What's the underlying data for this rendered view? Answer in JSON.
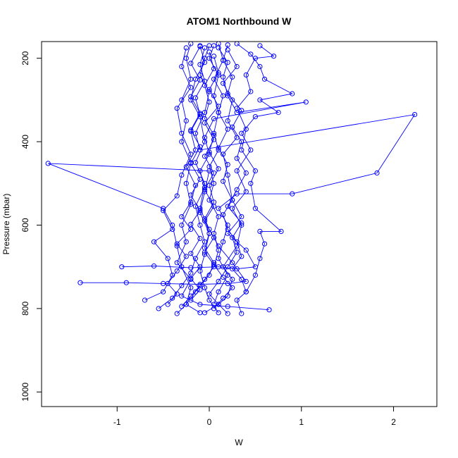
{
  "chart_data": {
    "type": "scatter",
    "title": "ATOM1 Northbound W",
    "xlabel": "W",
    "ylabel": "Pressure (mbar)",
    "xlim": [
      -1.82,
      2.47
    ],
    "ylim": [
      1035,
      160
    ],
    "y_reversed": true,
    "x_ticks": [
      -1,
      0,
      1,
      2
    ],
    "x_tick_labels": [
      "-1",
      "0",
      "1",
      "2"
    ],
    "y_ticks": [
      200,
      400,
      600,
      800,
      1000
    ],
    "y_tick_labels": [
      "200",
      "400",
      "600",
      "800",
      "1000"
    ],
    "grid": false,
    "marker": "open-circle",
    "connect_points": true,
    "color": "#0000ff",
    "series": [
      {
        "points": [
          [
            -0.05,
            810
          ],
          [
            0.1,
            790
          ],
          [
            0.2,
            770
          ],
          [
            0.25,
            730
          ],
          [
            0.15,
            700
          ],
          [
            0.3,
            650
          ],
          [
            0.35,
            600
          ],
          [
            0.25,
            560
          ],
          [
            0.4,
            520
          ],
          [
            0.3,
            470
          ],
          [
            0.45,
            420
          ],
          [
            0.35,
            380
          ],
          [
            0.5,
            340
          ],
          [
            0.75,
            330
          ],
          [
            0.55,
            300
          ],
          [
            0.9,
            285
          ],
          [
            0.6,
            250
          ],
          [
            0.55,
            220
          ],
          [
            0.45,
            190
          ],
          [
            0.3,
            165
          ]
        ]
      },
      {
        "points": [
          [
            0.1,
            810
          ],
          [
            0.0,
            780
          ],
          [
            -0.05,
            750
          ],
          [
            -0.1,
            710
          ],
          [
            -0.05,
            670
          ],
          [
            0.0,
            620
          ],
          [
            -0.1,
            570
          ],
          [
            -0.05,
            520
          ],
          [
            0.0,
            470
          ],
          [
            -1.75,
            452
          ],
          [
            -0.5,
            560
          ],
          [
            -0.4,
            600
          ],
          [
            -0.35,
            650
          ],
          [
            -0.3,
            700
          ],
          [
            -0.2,
            750
          ],
          [
            -0.25,
            790
          ],
          [
            -0.1,
            810
          ]
        ]
      },
      {
        "points": [
          [
            0.05,
            790
          ],
          [
            0.1,
            760
          ],
          [
            0.2,
            720
          ],
          [
            0.1,
            680
          ],
          [
            0.15,
            640
          ],
          [
            0.2,
            600
          ],
          [
            0.1,
            560
          ],
          [
            0.3,
            525
          ],
          [
            0.9,
            525
          ],
          [
            1.82,
            475
          ],
          [
            2.23,
            335
          ],
          [
            -0.1,
            420
          ],
          [
            -0.15,
            380
          ],
          [
            -0.05,
            330
          ],
          [
            0.0,
            280
          ],
          [
            -0.1,
            240
          ],
          [
            -0.05,
            200
          ],
          [
            0.0,
            170
          ]
        ]
      },
      {
        "points": [
          [
            -0.95,
            700
          ],
          [
            -0.6,
            698
          ],
          [
            -0.2,
            702
          ],
          [
            0.1,
            700
          ],
          [
            0.3,
            705
          ],
          [
            0.5,
            700
          ],
          [
            0.4,
            660
          ],
          [
            0.2,
            620
          ],
          [
            0.35,
            580
          ],
          [
            0.25,
            540
          ],
          [
            0.2,
            480
          ],
          [
            0.15,
            430
          ],
          [
            0.3,
            390
          ],
          [
            0.2,
            350
          ],
          [
            0.25,
            300
          ],
          [
            0.15,
            260
          ],
          [
            0.3,
            220
          ],
          [
            0.2,
            180
          ]
        ]
      },
      {
        "points": [
          [
            -1.4,
            738
          ],
          [
            -0.9,
            738
          ],
          [
            -0.5,
            740
          ],
          [
            -0.1,
            742
          ],
          [
            0.2,
            740
          ],
          [
            0.4,
            735
          ],
          [
            0.25,
            690
          ],
          [
            0.1,
            650
          ],
          [
            0.0,
            610
          ],
          [
            -0.1,
            560
          ],
          [
            -0.05,
            500
          ],
          [
            -0.15,
            450
          ],
          [
            -0.05,
            400
          ],
          [
            -0.1,
            340
          ],
          [
            -0.2,
            300
          ],
          [
            -0.15,
            250
          ],
          [
            -0.05,
            210
          ],
          [
            -0.1,
            170
          ]
        ]
      },
      {
        "points": [
          [
            0.65,
            803
          ],
          [
            0.2,
            795
          ],
          [
            -0.1,
            790
          ],
          [
            -0.3,
            770
          ],
          [
            -0.2,
            730
          ],
          [
            -0.35,
            690
          ],
          [
            -0.25,
            640
          ],
          [
            -0.3,
            600
          ],
          [
            -0.2,
            550
          ],
          [
            -0.25,
            500
          ],
          [
            -0.2,
            450
          ],
          [
            -0.3,
            400
          ],
          [
            -0.25,
            350
          ],
          [
            -0.3,
            300
          ],
          [
            -0.2,
            250
          ],
          [
            -0.25,
            200
          ],
          [
            -0.2,
            165
          ]
        ]
      },
      {
        "points": [
          [
            -0.7,
            780
          ],
          [
            -0.5,
            760
          ],
          [
            -0.4,
            720
          ],
          [
            -0.45,
            680
          ],
          [
            -0.6,
            640
          ],
          [
            -0.4,
            610
          ],
          [
            -0.5,
            565
          ],
          [
            -0.35,
            530
          ],
          [
            -0.3,
            480
          ],
          [
            -0.2,
            430
          ],
          [
            -0.3,
            380
          ],
          [
            -0.35,
            320
          ],
          [
            -0.2,
            270
          ],
          [
            -0.3,
            220
          ],
          [
            -0.25,
            175
          ]
        ]
      },
      {
        "points": [
          [
            0.35,
            812
          ],
          [
            0.3,
            780
          ],
          [
            0.4,
            760
          ],
          [
            0.5,
            720
          ],
          [
            0.55,
            680
          ],
          [
            0.6,
            645
          ],
          [
            0.55,
            615
          ],
          [
            0.78,
            615
          ],
          [
            0.5,
            560
          ],
          [
            0.45,
            500
          ],
          [
            0.5,
            470
          ],
          [
            0.35,
            420
          ],
          [
            0.4,
            370
          ],
          [
            0.3,
            320
          ],
          [
            0.45,
            280
          ],
          [
            0.4,
            240
          ],
          [
            0.5,
            200
          ],
          [
            0.7,
            195
          ],
          [
            0.55,
            170
          ]
        ]
      },
      {
        "points": [
          [
            -0.35,
            812
          ],
          [
            -0.25,
            790
          ],
          [
            -0.15,
            760
          ],
          [
            -0.05,
            730
          ],
          [
            0.05,
            700
          ],
          [
            0.1,
            660
          ],
          [
            0.05,
            620
          ],
          [
            0.1,
            580
          ],
          [
            0.0,
            540
          ],
          [
            0.05,
            500
          ],
          [
            0.0,
            460
          ],
          [
            0.1,
            420
          ],
          [
            0.05,
            380
          ],
          [
            0.1,
            330
          ],
          [
            0.05,
            290
          ],
          [
            0.1,
            240
          ],
          [
            0.0,
            200
          ],
          [
            0.05,
            170
          ]
        ]
      },
      {
        "points": [
          [
            -0.55,
            800
          ],
          [
            -0.4,
            775
          ],
          [
            -0.3,
            745
          ],
          [
            -0.2,
            715
          ],
          [
            -0.15,
            680
          ],
          [
            -0.05,
            640
          ],
          [
            -0.1,
            600
          ],
          [
            -0.15,
            555
          ],
          [
            -0.05,
            510
          ],
          [
            -0.1,
            470
          ],
          [
            0.0,
            430
          ],
          [
            -0.05,
            390
          ],
          [
            0.05,
            345
          ],
          [
            1.05,
            305
          ],
          [
            0.3,
            330
          ],
          [
            0.2,
            290
          ],
          [
            0.15,
            245
          ],
          [
            0.2,
            210
          ],
          [
            0.1,
            175
          ]
        ]
      },
      {
        "points": [
          [
            0.2,
            812
          ],
          [
            0.1,
            790
          ],
          [
            0.0,
            765
          ],
          [
            0.1,
            735
          ],
          [
            0.2,
            700
          ],
          [
            0.3,
            665
          ],
          [
            0.25,
            630
          ],
          [
            0.35,
            595
          ],
          [
            0.2,
            555
          ],
          [
            0.3,
            515
          ],
          [
            0.4,
            475
          ],
          [
            0.3,
            440
          ],
          [
            0.35,
            400
          ],
          [
            0.25,
            365
          ],
          [
            0.35,
            325
          ],
          [
            0.2,
            285
          ],
          [
            0.25,
            245
          ],
          [
            0.15,
            205
          ],
          [
            0.2,
            168
          ]
        ]
      },
      {
        "points": [
          [
            -0.3,
            795
          ],
          [
            -0.2,
            770
          ],
          [
            -0.1,
            745
          ],
          [
            0.0,
            720
          ],
          [
            0.05,
            690
          ],
          [
            -0.05,
            655
          ],
          [
            0.0,
            620
          ],
          [
            -0.05,
            585
          ],
          [
            0.05,
            545
          ],
          [
            0.0,
            505
          ],
          [
            0.1,
            465
          ],
          [
            0.0,
            425
          ],
          [
            0.05,
            385
          ],
          [
            -0.05,
            345
          ],
          [
            0.0,
            305
          ],
          [
            -0.05,
            265
          ],
          [
            0.05,
            225
          ],
          [
            0.0,
            185
          ]
        ]
      },
      {
        "points": [
          [
            0.4,
            760
          ],
          [
            0.35,
            730
          ],
          [
            0.25,
            705
          ],
          [
            0.35,
            675
          ],
          [
            0.3,
            640
          ],
          [
            0.2,
            610
          ],
          [
            0.15,
            575
          ],
          [
            0.25,
            540
          ],
          [
            0.15,
            495
          ],
          [
            0.2,
            455
          ],
          [
            0.1,
            415
          ],
          [
            0.2,
            370
          ],
          [
            0.1,
            330
          ],
          [
            0.15,
            290
          ],
          [
            0.05,
            250
          ],
          [
            0.15,
            205
          ],
          [
            0.1,
            165
          ]
        ]
      },
      {
        "points": [
          [
            -0.45,
            790
          ],
          [
            -0.35,
            765
          ],
          [
            -0.45,
            740
          ],
          [
            -0.35,
            710
          ],
          [
            -0.25,
            675
          ],
          [
            -0.35,
            645
          ],
          [
            -0.2,
            610
          ],
          [
            -0.3,
            580
          ],
          [
            -0.2,
            545
          ],
          [
            -0.15,
            505
          ],
          [
            -0.25,
            460
          ],
          [
            -0.15,
            420
          ],
          [
            -0.2,
            375
          ],
          [
            -0.1,
            335
          ],
          [
            -0.15,
            295
          ],
          [
            -0.05,
            255
          ],
          [
            -0.1,
            215
          ],
          [
            -0.05,
            175
          ]
        ]
      },
      {
        "points": [
          [
            0.05,
            800
          ],
          [
            0.15,
            775
          ],
          [
            0.25,
            750
          ],
          [
            0.15,
            725
          ],
          [
            0.05,
            695
          ],
          [
            -0.05,
            665
          ],
          [
            0.05,
            630
          ],
          [
            -0.05,
            590
          ],
          [
            0.05,
            555
          ],
          [
            -0.05,
            515
          ],
          [
            0.05,
            475
          ],
          [
            -0.05,
            435
          ],
          [
            0.05,
            395
          ],
          [
            -0.05,
            355
          ],
          [
            0.1,
            315
          ],
          [
            0.0,
            275
          ],
          [
            0.1,
            235
          ],
          [
            0.05,
            195
          ]
        ]
      },
      {
        "points": [
          [
            -0.2,
            780
          ],
          [
            -0.1,
            755
          ],
          [
            -0.2,
            728
          ],
          [
            -0.1,
            700
          ],
          [
            -0.2,
            668
          ],
          [
            -0.1,
            632
          ],
          [
            -0.2,
            598
          ],
          [
            -0.1,
            565
          ],
          [
            -0.2,
            528
          ],
          [
            -0.1,
            490
          ],
          [
            -0.2,
            452
          ],
          [
            -0.1,
            412
          ],
          [
            -0.2,
            372
          ],
          [
            -0.1,
            332
          ],
          [
            -0.2,
            292
          ],
          [
            -0.1,
            252
          ],
          [
            -0.2,
            212
          ],
          [
            -0.1,
            172
          ]
        ]
      }
    ]
  }
}
